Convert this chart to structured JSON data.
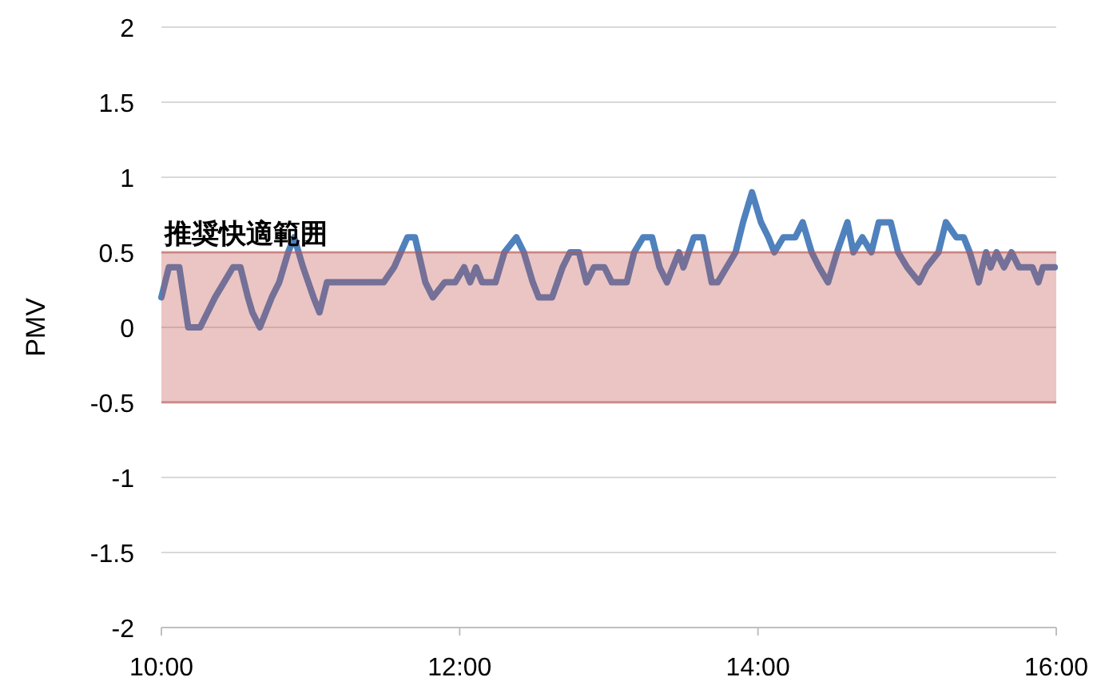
{
  "chart_data": {
    "type": "line",
    "ylabel": "PMV",
    "x": [
      10.0,
      10.05,
      10.12,
      10.18,
      10.26,
      10.31,
      10.36,
      10.42,
      10.48,
      10.53,
      10.58,
      10.61,
      10.66,
      10.74,
      10.79,
      10.85,
      10.89,
      10.95,
      11.02,
      11.06,
      11.11,
      11.49,
      11.56,
      11.65,
      11.7,
      11.77,
      11.82,
      11.9,
      11.97,
      12.03,
      12.07,
      12.11,
      12.15,
      12.24,
      12.3,
      12.38,
      12.43,
      12.49,
      12.53,
      12.62,
      12.69,
      12.74,
      12.8,
      12.85,
      12.9,
      12.97,
      13.02,
      13.12,
      13.17,
      13.23,
      13.29,
      13.34,
      13.39,
      13.43,
      13.47,
      13.5,
      13.57,
      13.63,
      13.69,
      13.73,
      13.79,
      13.85,
      13.9,
      13.96,
      14.02,
      14.07,
      14.11,
      14.17,
      14.25,
      14.3,
      14.36,
      14.41,
      14.47,
      14.53,
      14.6,
      14.64,
      14.7,
      14.76,
      14.81,
      14.89,
      14.94,
      15.0,
      15.08,
      15.13,
      15.21,
      15.26,
      15.33,
      15.38,
      15.42,
      15.48,
      15.53,
      15.56,
      15.6,
      15.65,
      15.7,
      15.75,
      15.84,
      15.88,
      15.91,
      15.99
    ],
    "series": [
      {
        "color": "#4f81bd",
        "values": [
          0.2,
          0.4,
          0.4,
          0.0,
          0.0,
          0.1,
          0.2,
          0.3,
          0.4,
          0.4,
          0.2,
          0.1,
          0.0,
          0.2,
          0.3,
          0.5,
          0.6,
          0.4,
          0.2,
          0.1,
          0.3,
          0.3,
          0.4,
          0.6,
          0.6,
          0.3,
          0.2,
          0.3,
          0.3,
          0.4,
          0.3,
          0.4,
          0.3,
          0.3,
          0.5,
          0.6,
          0.5,
          0.3,
          0.2,
          0.2,
          0.4,
          0.5,
          0.5,
          0.3,
          0.4,
          0.4,
          0.3,
          0.3,
          0.5,
          0.6,
          0.6,
          0.4,
          0.3,
          0.4,
          0.5,
          0.4,
          0.6,
          0.6,
          0.3,
          0.3,
          0.4,
          0.5,
          0.7,
          0.9,
          0.7,
          0.6,
          0.5,
          0.6,
          0.6,
          0.7,
          0.5,
          0.4,
          0.3,
          0.5,
          0.7,
          0.5,
          0.6,
          0.5,
          0.7,
          0.7,
          0.5,
          0.4,
          0.3,
          0.4,
          0.5,
          0.7,
          0.6,
          0.6,
          0.5,
          0.3,
          0.5,
          0.4,
          0.5,
          0.4,
          0.5,
          0.4,
          0.4,
          0.3,
          0.4,
          0.4
        ]
      }
    ],
    "xlim": [
      10,
      16
    ],
    "xticks": [
      {
        "value": 10,
        "label": "10:00"
      },
      {
        "value": 12,
        "label": "12:00"
      },
      {
        "value": 14,
        "label": "14:00"
      },
      {
        "value": 16,
        "label": "16:00"
      }
    ],
    "ylim": [
      -2,
      2
    ],
    "yticks": [
      -2,
      -1.5,
      -1,
      -0.5,
      0,
      0.5,
      1,
      1.5,
      2
    ],
    "grid": "y",
    "line_style": "solid",
    "bands": [
      {
        "axis": "y",
        "from": -0.5,
        "to": 0.5,
        "label": "推奨快適範囲",
        "color": "#c0504d"
      }
    ]
  }
}
